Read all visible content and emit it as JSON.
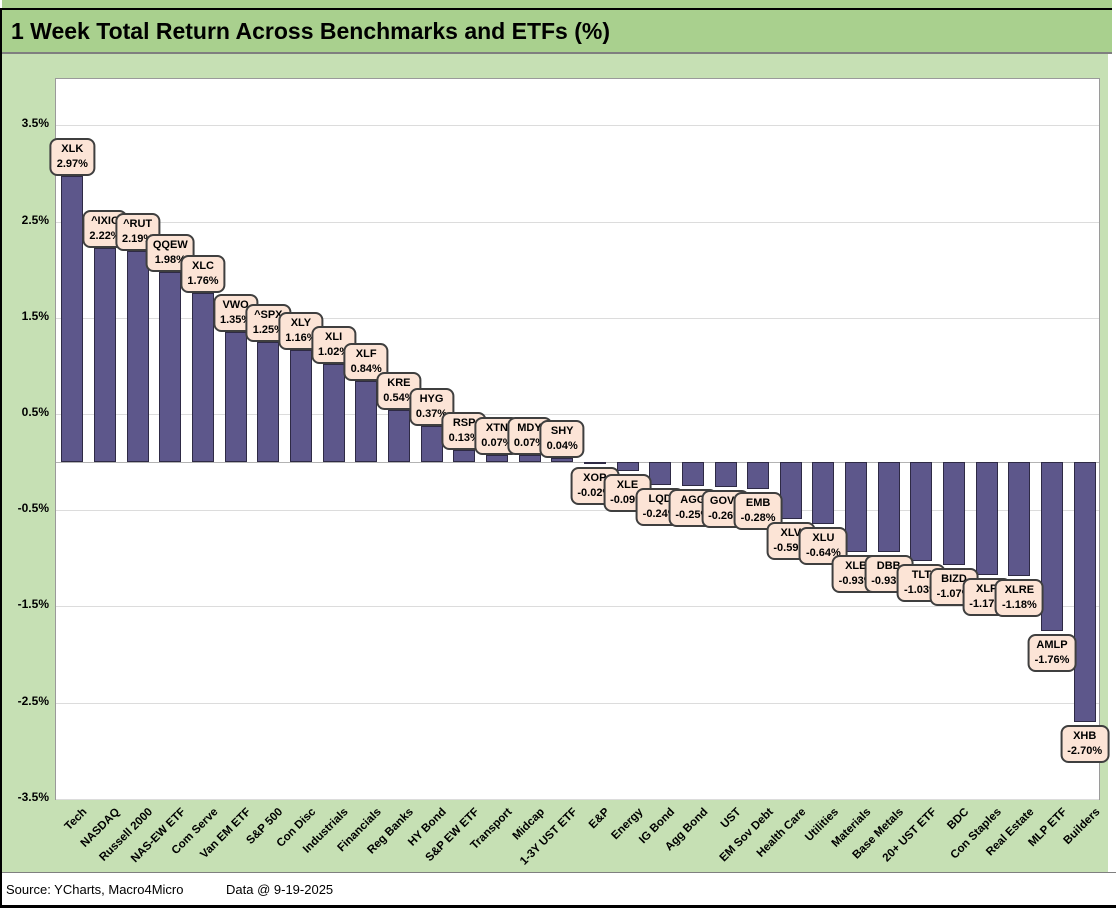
{
  "header": {
    "title": "1 Week Total Return Across Benchmarks and ETFs (%)"
  },
  "footer": {
    "source": "Source: YCharts, Macro4Micro",
    "date": "Data @ 9-19-2025"
  },
  "colors": {
    "header_bg": "#A9D08E",
    "chart_bg": "#C6E0B4",
    "plot_bg": "#FFFFFF",
    "bar_fill": "#5D578B",
    "bar_border": "#2E2A45",
    "callout_bg": "#FCE4D6",
    "callout_border": "#3F3F3F",
    "gridline": "#DCDCDC"
  },
  "chart_data": {
    "type": "bar",
    "title": "1 Week Total Return Across Benchmarks and ETFs (%)",
    "xlabel": "",
    "ylabel": "",
    "ylim": [
      -3.5,
      4.0
    ],
    "grid": "horizontal",
    "legend": "none",
    "yticks": [
      3.5,
      2.5,
      1.5,
      0.5,
      -0.5,
      -1.5,
      -2.5,
      -3.5
    ],
    "ytick_labels": [
      "3.5%",
      "2.5%",
      "1.5%",
      "0.5%",
      "-0.5%",
      "-1.5%",
      "-2.5%",
      "-3.5%"
    ],
    "points": [
      {
        "category": "Tech",
        "ticker": "XLK",
        "value": 2.97,
        "label": "2.97%"
      },
      {
        "category": "NASDAQ",
        "ticker": "^IXIC",
        "value": 2.22,
        "label": "2.22%"
      },
      {
        "category": "Russell 2000",
        "ticker": "^RUT",
        "value": 2.19,
        "label": "2.19%"
      },
      {
        "category": "NAS-EW ETF",
        "ticker": "QQEW",
        "value": 1.98,
        "label": "1.98%"
      },
      {
        "category": "Com Serve",
        "ticker": "XLC",
        "value": 1.76,
        "label": "1.76%"
      },
      {
        "category": "Van EM ETF",
        "ticker": "VWO",
        "value": 1.35,
        "label": "1.35%"
      },
      {
        "category": "S&P 500",
        "ticker": "^SPX",
        "value": 1.25,
        "label": "1.25%"
      },
      {
        "category": "Con Disc",
        "ticker": "XLY",
        "value": 1.16,
        "label": "1.16%"
      },
      {
        "category": "Industrials",
        "ticker": "XLI",
        "value": 1.02,
        "label": "1.02%"
      },
      {
        "category": "Financials",
        "ticker": "XLF",
        "value": 0.84,
        "label": "0.84%"
      },
      {
        "category": "Reg Banks",
        "ticker": "KRE",
        "value": 0.54,
        "label": "0.54%"
      },
      {
        "category": "HY Bond",
        "ticker": "HYG",
        "value": 0.37,
        "label": "0.37%"
      },
      {
        "category": "S&P EW ETF",
        "ticker": "RSP",
        "value": 0.13,
        "label": "0.13%"
      },
      {
        "category": "Transport",
        "ticker": "XTN",
        "value": 0.07,
        "label": "0.07%"
      },
      {
        "category": "Midcap",
        "ticker": "MDY",
        "value": 0.07,
        "label": "0.07%"
      },
      {
        "category": "1-3Y UST ETF",
        "ticker": "SHY",
        "value": 0.04,
        "label": "0.04%"
      },
      {
        "category": "E&P",
        "ticker": "XOP",
        "value": -0.02,
        "label": "-0.02%"
      },
      {
        "category": "Energy",
        "ticker": "XLE",
        "value": -0.09,
        "label": "-0.09%"
      },
      {
        "category": "IG Bond",
        "ticker": "LQD",
        "value": -0.24,
        "label": "-0.24%"
      },
      {
        "category": "Agg Bond",
        "ticker": "AGG",
        "value": -0.25,
        "label": "-0.25%"
      },
      {
        "category": "UST",
        "ticker": "GOVT",
        "value": -0.26,
        "label": "-0.26%"
      },
      {
        "category": "EM Sov Debt",
        "ticker": "EMB",
        "value": -0.28,
        "label": "-0.28%"
      },
      {
        "category": "Health Care",
        "ticker": "XLV",
        "value": -0.59,
        "label": "-0.59%"
      },
      {
        "category": "Utilities",
        "ticker": "XLU",
        "value": -0.64,
        "label": "-0.64%"
      },
      {
        "category": "Materials",
        "ticker": "XLB",
        "value": -0.93,
        "label": "-0.93%"
      },
      {
        "category": "Base Metals",
        "ticker": "DBB",
        "value": -0.93,
        "label": "-0.93%"
      },
      {
        "category": "20+ UST ETF",
        "ticker": "TLT",
        "value": -1.03,
        "label": "-1.03%"
      },
      {
        "category": "BDC",
        "ticker": "BIZD",
        "value": -1.07,
        "label": "-1.07%"
      },
      {
        "category": "Con Staples",
        "ticker": "XLP",
        "value": -1.17,
        "label": "-1.17%"
      },
      {
        "category": "Real Estate",
        "ticker": "XLRE",
        "value": -1.18,
        "label": "-1.18%"
      },
      {
        "category": "MLP ETF",
        "ticker": "AMLP",
        "value": -1.76,
        "label": "-1.76%"
      },
      {
        "category": "Builders",
        "ticker": "XHB",
        "value": -2.7,
        "label": "-2.70%"
      }
    ]
  }
}
